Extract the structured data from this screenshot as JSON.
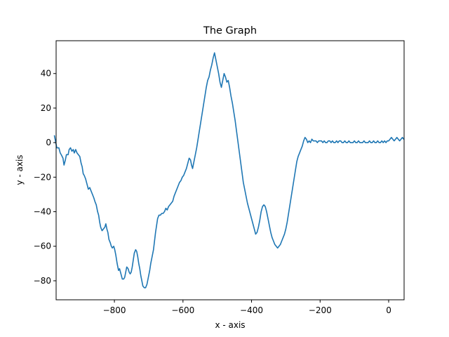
{
  "chart_data": {
    "type": "line",
    "title": "The Graph",
    "xlabel": "x - axis",
    "ylabel": "y - axis",
    "xlim": [
      -970,
      45
    ],
    "ylim": [
      -91,
      59
    ],
    "xticks": [
      -800,
      -600,
      -400,
      -200,
      0
    ],
    "xtick_labels": [
      "−800",
      "−600",
      "−400",
      "−200",
      "0"
    ],
    "yticks": [
      -80,
      -60,
      -40,
      -20,
      0,
      20,
      40
    ],
    "ytick_labels": [
      "−80",
      "−60",
      "−40",
      "−20",
      "0",
      "20",
      "40"
    ],
    "grid": false,
    "legend": "none",
    "series": [
      {
        "color": "#1f77b4",
        "points": [
          [
            -975,
            4
          ],
          [
            -970,
            -1
          ],
          [
            -968,
            -3
          ],
          [
            -962,
            -3
          ],
          [
            -958,
            -6
          ],
          [
            -955,
            -7
          ],
          [
            -950,
            -9
          ],
          [
            -947,
            -13
          ],
          [
            -943,
            -10
          ],
          [
            -940,
            -7
          ],
          [
            -935,
            -7
          ],
          [
            -932,
            -4
          ],
          [
            -928,
            -3
          ],
          [
            -924,
            -5
          ],
          [
            -920,
            -4
          ],
          [
            -917,
            -6
          ],
          [
            -913,
            -4
          ],
          [
            -909,
            -6
          ],
          [
            -905,
            -7
          ],
          [
            -901,
            -8
          ],
          [
            -897,
            -12
          ],
          [
            -894,
            -14
          ],
          [
            -891,
            -18
          ],
          [
            -888,
            -19
          ],
          [
            -884,
            -21
          ],
          [
            -880,
            -24
          ],
          [
            -876,
            -27
          ],
          [
            -872,
            -26
          ],
          [
            -868,
            -28
          ],
          [
            -864,
            -30
          ],
          [
            -860,
            -32
          ],
          [
            -857,
            -34
          ],
          [
            -853,
            -36
          ],
          [
            -849,
            -40
          ],
          [
            -846,
            -42
          ],
          [
            -843,
            -46
          ],
          [
            -840,
            -49
          ],
          [
            -836,
            -51
          ],
          [
            -832,
            -50
          ],
          [
            -828,
            -49
          ],
          [
            -825,
            -47
          ],
          [
            -822,
            -50
          ],
          [
            -819,
            -52
          ],
          [
            -816,
            -56
          ],
          [
            -812,
            -58
          ],
          [
            -809,
            -60
          ],
          [
            -806,
            -61
          ],
          [
            -802,
            -60
          ],
          [
            -799,
            -62
          ],
          [
            -796,
            -65
          ],
          [
            -792,
            -70
          ],
          [
            -788,
            -74
          ],
          [
            -785,
            -73
          ],
          [
            -781,
            -76
          ],
          [
            -777,
            -79
          ],
          [
            -773,
            -79
          ],
          [
            -770,
            -78
          ],
          [
            -767,
            -75
          ],
          [
            -764,
            -72
          ],
          [
            -760,
            -73
          ],
          [
            -757,
            -75
          ],
          [
            -754,
            -76
          ],
          [
            -751,
            -75
          ],
          [
            -748,
            -72
          ],
          [
            -745,
            -68
          ],
          [
            -742,
            -64
          ],
          [
            -738,
            -62
          ],
          [
            -735,
            -63
          ],
          [
            -732,
            -66
          ],
          [
            -729,
            -70
          ],
          [
            -726,
            -73
          ],
          [
            -723,
            -77
          ],
          [
            -720,
            -80
          ],
          [
            -717,
            -83
          ],
          [
            -713,
            -84
          ],
          [
            -709,
            -84
          ],
          [
            -705,
            -82
          ],
          [
            -701,
            -78
          ],
          [
            -697,
            -74
          ],
          [
            -694,
            -70
          ],
          [
            -690,
            -66
          ],
          [
            -686,
            -62
          ],
          [
            -683,
            -57
          ],
          [
            -680,
            -52
          ],
          [
            -677,
            -48
          ],
          [
            -674,
            -44
          ],
          [
            -670,
            -42
          ],
          [
            -666,
            -42
          ],
          [
            -662,
            -41
          ],
          [
            -658,
            -41
          ],
          [
            -654,
            -40
          ],
          [
            -650,
            -38
          ],
          [
            -646,
            -39
          ],
          [
            -642,
            -37
          ],
          [
            -638,
            -36
          ],
          [
            -634,
            -35
          ],
          [
            -630,
            -34
          ],
          [
            -626,
            -31
          ],
          [
            -622,
            -29
          ],
          [
            -618,
            -27
          ],
          [
            -614,
            -25
          ],
          [
            -610,
            -23
          ],
          [
            -606,
            -22
          ],
          [
            -602,
            -20
          ],
          [
            -598,
            -19
          ],
          [
            -594,
            -17
          ],
          [
            -590,
            -15
          ],
          [
            -586,
            -12
          ],
          [
            -582,
            -9
          ],
          [
            -578,
            -10
          ],
          [
            -575,
            -13
          ],
          [
            -572,
            -15
          ],
          [
            -568,
            -11
          ],
          [
            -564,
            -7
          ],
          [
            -560,
            -3
          ],
          [
            -556,
            2
          ],
          [
            -552,
            7
          ],
          [
            -548,
            12
          ],
          [
            -544,
            17
          ],
          [
            -540,
            22
          ],
          [
            -536,
            27
          ],
          [
            -532,
            32
          ],
          [
            -528,
            36
          ],
          [
            -524,
            38
          ],
          [
            -520,
            42
          ],
          [
            -516,
            45
          ],
          [
            -512,
            49
          ],
          [
            -508,
            52
          ],
          [
            -504,
            48
          ],
          [
            -500,
            44
          ],
          [
            -496,
            40
          ],
          [
            -492,
            35
          ],
          [
            -488,
            32
          ],
          [
            -484,
            36
          ],
          [
            -480,
            40
          ],
          [
            -476,
            38
          ],
          [
            -472,
            35
          ],
          [
            -468,
            36
          ],
          [
            -464,
            32
          ],
          [
            -460,
            27
          ],
          [
            -456,
            23
          ],
          [
            -452,
            18
          ],
          [
            -448,
            13
          ],
          [
            -444,
            7
          ],
          [
            -440,
            1
          ],
          [
            -436,
            -5
          ],
          [
            -432,
            -11
          ],
          [
            -428,
            -17
          ],
          [
            -424,
            -23
          ],
          [
            -420,
            -27
          ],
          [
            -416,
            -31
          ],
          [
            -412,
            -35
          ],
          [
            -408,
            -38
          ],
          [
            -404,
            -41
          ],
          [
            -400,
            -44
          ],
          [
            -396,
            -47
          ],
          [
            -392,
            -50
          ],
          [
            -388,
            -53
          ],
          [
            -384,
            -52
          ],
          [
            -380,
            -49
          ],
          [
            -376,
            -45
          ],
          [
            -372,
            -40
          ],
          [
            -368,
            -37
          ],
          [
            -364,
            -36
          ],
          [
            -360,
            -37
          ],
          [
            -356,
            -40
          ],
          [
            -352,
            -44
          ],
          [
            -348,
            -48
          ],
          [
            -344,
            -52
          ],
          [
            -340,
            -55
          ],
          [
            -336,
            -57
          ],
          [
            -332,
            -59
          ],
          [
            -328,
            -60
          ],
          [
            -324,
            -61
          ],
          [
            -320,
            -60
          ],
          [
            -316,
            -59
          ],
          [
            -312,
            -57
          ],
          [
            -308,
            -55
          ],
          [
            -304,
            -53
          ],
          [
            -300,
            -50
          ],
          [
            -296,
            -46
          ],
          [
            -292,
            -41
          ],
          [
            -288,
            -36
          ],
          [
            -284,
            -31
          ],
          [
            -280,
            -26
          ],
          [
            -276,
            -21
          ],
          [
            -272,
            -16
          ],
          [
            -268,
            -11
          ],
          [
            -264,
            -8
          ],
          [
            -260,
            -6
          ],
          [
            -256,
            -4
          ],
          [
            -252,
            -2
          ],
          [
            -248,
            1
          ],
          [
            -244,
            3
          ],
          [
            -240,
            2
          ],
          [
            -236,
            0
          ],
          [
            -232,
            1
          ],
          [
            -228,
            0
          ],
          [
            -224,
            2
          ],
          [
            -220,
            1
          ],
          [
            -216,
            1
          ],
          [
            -212,
            1
          ],
          [
            -208,
            0
          ],
          [
            -204,
            1
          ],
          [
            -200,
            1
          ],
          [
            -196,
            1
          ],
          [
            -192,
            0
          ],
          [
            -188,
            1
          ],
          [
            -184,
            0
          ],
          [
            -180,
            0
          ],
          [
            -176,
            1
          ],
          [
            -172,
            1
          ],
          [
            -168,
            0
          ],
          [
            -164,
            1
          ],
          [
            -160,
            0
          ],
          [
            -156,
            0
          ],
          [
            -152,
            1
          ],
          [
            -148,
            0
          ],
          [
            -144,
            1
          ],
          [
            -140,
            1
          ],
          [
            -136,
            0
          ],
          [
            -132,
            0
          ],
          [
            -128,
            1
          ],
          [
            -124,
            0
          ],
          [
            -120,
            0
          ],
          [
            -116,
            1
          ],
          [
            -112,
            0
          ],
          [
            -108,
            0
          ],
          [
            -104,
            0
          ],
          [
            -100,
            1
          ],
          [
            -96,
            0
          ],
          [
            -92,
            0
          ],
          [
            -88,
            1
          ],
          [
            -84,
            0
          ],
          [
            -80,
            0
          ],
          [
            -76,
            0
          ],
          [
            -72,
            1
          ],
          [
            -68,
            0
          ],
          [
            -64,
            0
          ],
          [
            -60,
            0
          ],
          [
            -56,
            1
          ],
          [
            -52,
            0
          ],
          [
            -48,
            0
          ],
          [
            -44,
            1
          ],
          [
            -40,
            0
          ],
          [
            -36,
            0
          ],
          [
            -32,
            1
          ],
          [
            -28,
            0
          ],
          [
            -24,
            0
          ],
          [
            -20,
            1
          ],
          [
            -16,
            0
          ],
          [
            -12,
            1
          ],
          [
            -8,
            0
          ],
          [
            -4,
            1
          ],
          [
            0,
            1
          ],
          [
            4,
            2
          ],
          [
            8,
            3
          ],
          [
            12,
            2
          ],
          [
            16,
            1
          ],
          [
            20,
            2
          ],
          [
            24,
            3
          ],
          [
            28,
            2
          ],
          [
            32,
            1
          ],
          [
            36,
            2
          ],
          [
            40,
            3
          ],
          [
            44,
            2
          ]
        ]
      }
    ]
  }
}
